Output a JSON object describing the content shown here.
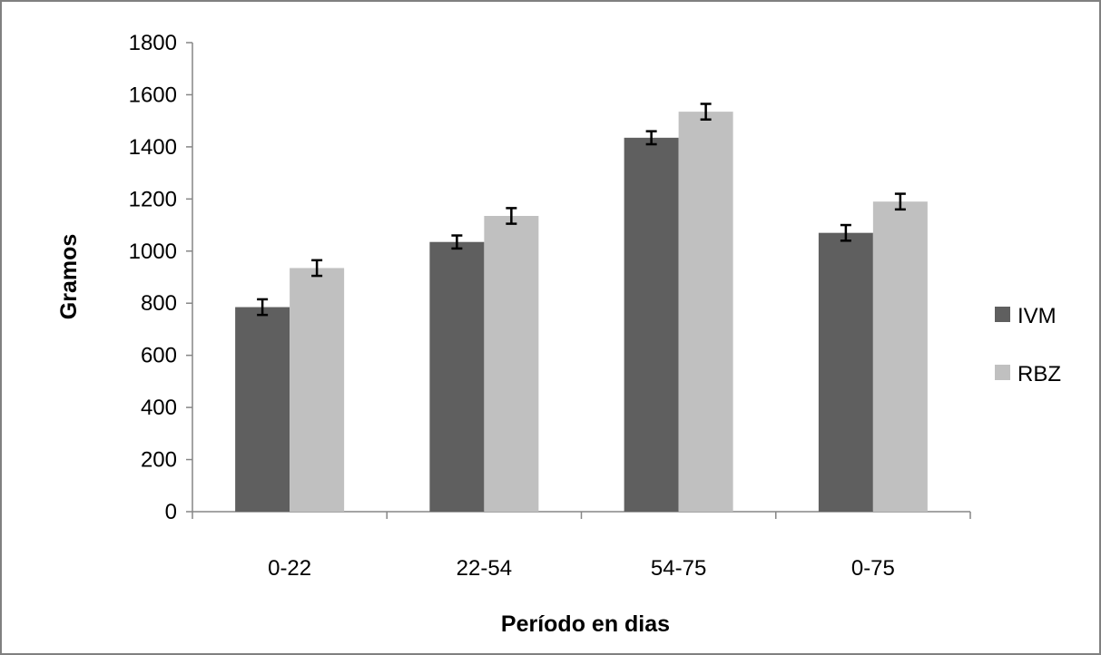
{
  "chart_data": {
    "type": "bar",
    "categories": [
      "0-22",
      "22-54",
      "54-75",
      "0-75"
    ],
    "series": [
      {
        "name": "IVM",
        "values": [
          785,
          1035,
          1435,
          1070
        ],
        "error": [
          30,
          25,
          25,
          30
        ],
        "color": "#5f5f5f"
      },
      {
        "name": "RBZ",
        "values": [
          935,
          1135,
          1535,
          1190
        ],
        "error": [
          30,
          30,
          30,
          30
        ],
        "color": "#c0c0c0"
      }
    ],
    "xlabel": "Período en dias",
    "ylabel": "Gramos",
    "ylim": [
      0,
      1800
    ],
    "yticks": [
      0,
      200,
      400,
      600,
      800,
      1000,
      1200,
      1400,
      1600,
      1800
    ],
    "grid": false,
    "legend_position": "right",
    "frame_color": "#7f7f7f"
  }
}
